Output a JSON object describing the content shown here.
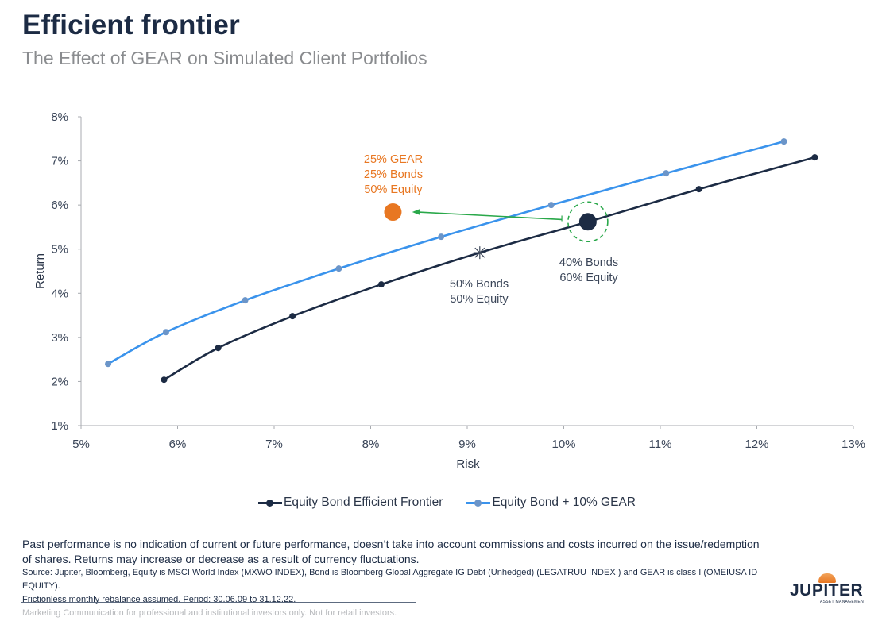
{
  "header": {
    "title": "Efficient frontier",
    "subtitle": "The Effect of GEAR on Simulated Client Portfolios"
  },
  "colors": {
    "navy": "#1c2b44",
    "blue_line": "#3a93ec",
    "blue_marker": "#6b95c9",
    "orange": "#e87722",
    "green": "#2aa84a",
    "grey_text": "#8a8c8f"
  },
  "chart_data": {
    "type": "line",
    "title": "Efficient frontier",
    "subtitle": "The Effect of GEAR on Simulated Client Portfolios",
    "xlabel": "Risk",
    "ylabel": "Return",
    "xlim": [
      5,
      13
    ],
    "ylim": [
      1,
      8
    ],
    "x_ticks": [
      "5%",
      "6%",
      "7%",
      "8%",
      "9%",
      "10%",
      "11%",
      "12%",
      "13%"
    ],
    "y_ticks": [
      "1%",
      "2%",
      "3%",
      "4%",
      "5%",
      "6%",
      "7%",
      "8%"
    ],
    "grid": false,
    "legend_position": "bottom-center",
    "series": [
      {
        "name": "Equity Bond Efficient Frontier",
        "color": "#1c2b44",
        "x": [
          5.86,
          6.42,
          7.19,
          8.11,
          9.13,
          10.25,
          11.4,
          12.6
        ],
        "y": [
          2.04,
          2.76,
          3.48,
          4.2,
          4.92,
          5.62,
          6.36,
          7.08
        ],
        "markers": [
          true,
          true,
          true,
          true,
          false,
          false,
          true,
          true
        ]
      },
      {
        "name": "Equity Bond + 10% GEAR",
        "color": "#3a93ec",
        "x": [
          5.28,
          5.88,
          6.7,
          7.67,
          8.73,
          9.87,
          11.06,
          12.28
        ],
        "y": [
          2.4,
          3.12,
          3.84,
          4.56,
          5.28,
          6.0,
          6.72,
          7.44
        ],
        "markers": [
          true,
          true,
          true,
          true,
          true,
          true,
          true,
          true
        ]
      }
    ],
    "highlights": [
      {
        "name": "50/50 portfolio",
        "x": 9.13,
        "y": 4.92,
        "marker": "star",
        "label": [
          "50% Bonds",
          "50% Equity"
        ]
      },
      {
        "name": "40/60 portfolio",
        "x": 10.25,
        "y": 5.62,
        "marker": "large-circle-dashed-ring",
        "label": [
          "40% Bonds",
          "60% Equity"
        ]
      },
      {
        "name": "GEAR portfolio",
        "x": 8.23,
        "y": 5.84,
        "marker": "orange-circle",
        "label": [
          "25% GEAR",
          "25% Bonds",
          "50% Equity"
        ]
      }
    ],
    "annotations": [
      {
        "type": "arrow",
        "from": [
          9.98,
          5.67
        ],
        "to": [
          8.43,
          5.84
        ],
        "color": "#2aa84a"
      }
    ]
  },
  "legend": [
    {
      "label": "Equity Bond Efficient Frontier"
    },
    {
      "label": "Equity Bond + 10% GEAR"
    }
  ],
  "footer": {
    "disclaimer": "Past performance is no indication of current or future performance, doesn’t take into account commissions and costs incurred on the issue/redemption of shares. Returns may increase or decrease as a result of currency fluctuations.",
    "source_line1": "Source: Jupiter, Bloomberg, Equity is MSCI World Index (MXWO INDEX), Bond is Bloomberg Global Aggregate IG Debt (Unhedged) (LEGATRUU INDEX ) and GEAR is class I (OMEIUSA ID EQUITY).",
    "source_line2": "Frictionless monthly rebalance assumed. Period: 30.06.09 to 31.12.22.",
    "marketing": "Marketing Communication for professional and institutional investors only. Not for retail investors.",
    "logo_name": "JUPITER",
    "logo_sub": "ASSET MANAGEMENT"
  }
}
